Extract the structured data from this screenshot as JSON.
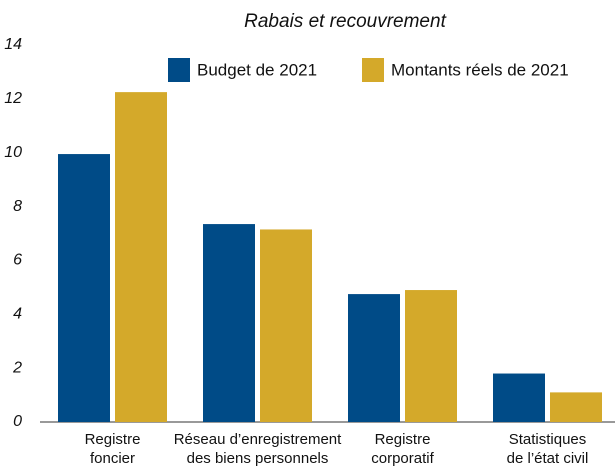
{
  "chart_data": {
    "type": "bar",
    "title": "Rabais et recouvrement",
    "categories": [
      [
        "Registre",
        "foncier"
      ],
      [
        "Réseau d’enregistrement",
        "des biens personnels"
      ],
      [
        "Registre",
        "corporatif"
      ],
      [
        "Statistiques",
        "de l’état civil"
      ]
    ],
    "series": [
      {
        "name": "Budget de 2021",
        "color": "#004b87",
        "values": [
          9.95,
          7.35,
          4.75,
          1.8
        ]
      },
      {
        "name": "Montants réels de 2021",
        "color": "#d4a92a",
        "values": [
          12.25,
          7.15,
          4.9,
          1.1
        ]
      }
    ],
    "ylim": [
      0,
      14
    ],
    "yticks": [
      0,
      2,
      4,
      6,
      8,
      10,
      12,
      14
    ],
    "grid": false,
    "legend": "top"
  }
}
